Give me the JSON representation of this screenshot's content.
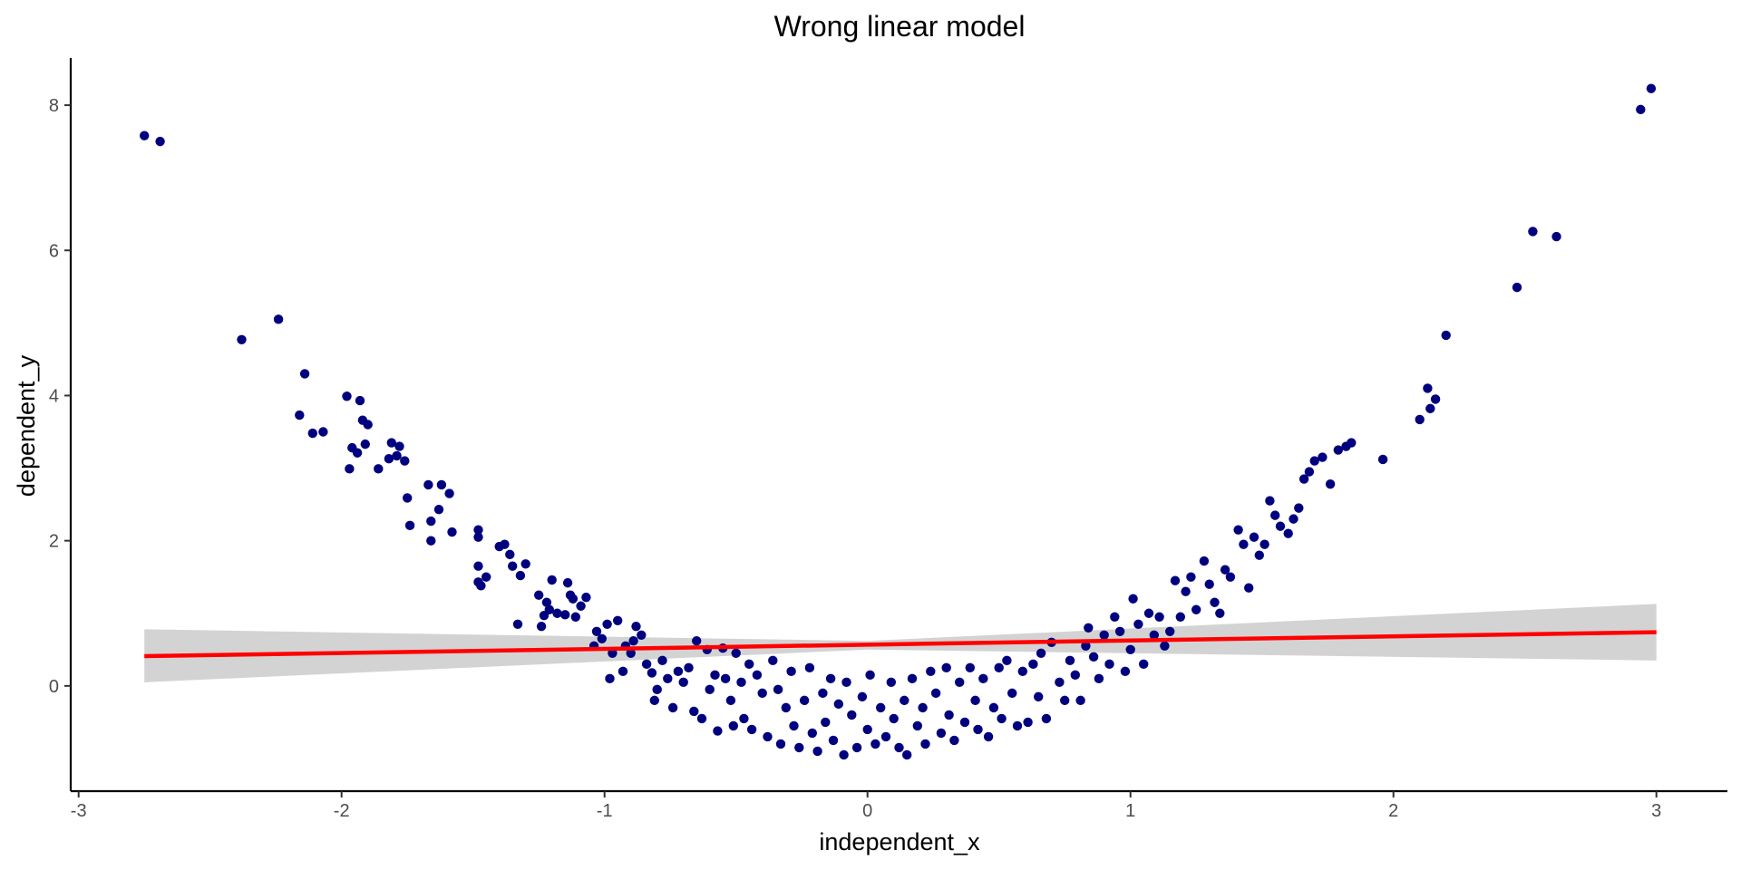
{
  "chart_data": {
    "type": "scatter",
    "title": "Wrong linear model",
    "xlabel": "independent_x",
    "ylabel": "dependent_y",
    "xlim": [
      -3.03,
      3.27
    ],
    "ylim": [
      -1.45,
      8.65
    ],
    "xticks": [
      -3,
      -2,
      -1,
      0,
      1,
      2,
      3
    ],
    "yticks": [
      0,
      2,
      4,
      6,
      8
    ],
    "grid": false,
    "legend": "none",
    "colors": {
      "points": "#00007f",
      "fit_line": "#ff0000",
      "confidence_band": "#d3d3d3",
      "axis": "#000000",
      "tick_label": "#4d4d4d"
    },
    "series": [
      {
        "type": "scatter",
        "points": [
          [
            -2.75,
            7.58
          ],
          [
            -2.69,
            7.5
          ],
          [
            -2.38,
            4.77
          ],
          [
            -2.24,
            5.05
          ],
          [
            -2.16,
            3.73
          ],
          [
            -2.14,
            4.3
          ],
          [
            -2.11,
            3.48
          ],
          [
            -2.07,
            3.5
          ],
          [
            -1.98,
            3.99
          ],
          [
            -1.97,
            2.99
          ],
          [
            -1.96,
            3.28
          ],
          [
            -1.94,
            3.21
          ],
          [
            -1.93,
            3.93
          ],
          [
            -1.92,
            3.66
          ],
          [
            -1.91,
            3.33
          ],
          [
            -1.9,
            3.6
          ],
          [
            -1.86,
            2.99
          ],
          [
            -1.82,
            3.13
          ],
          [
            -1.81,
            3.35
          ],
          [
            -1.79,
            3.17
          ],
          [
            -1.78,
            3.3
          ],
          [
            -1.76,
            3.1
          ],
          [
            -1.75,
            2.59
          ],
          [
            -1.74,
            2.21
          ],
          [
            -1.67,
            2.77
          ],
          [
            -1.66,
            2.0
          ],
          [
            -1.66,
            2.27
          ],
          [
            -1.63,
            2.43
          ],
          [
            -1.62,
            2.77
          ],
          [
            -1.59,
            2.65
          ],
          [
            -1.58,
            2.12
          ],
          [
            -1.48,
            2.15
          ],
          [
            -1.48,
            2.05
          ],
          [
            -1.48,
            1.65
          ],
          [
            -1.48,
            1.43
          ],
          [
            -1.47,
            1.38
          ],
          [
            -1.45,
            1.5
          ],
          [
            -1.4,
            1.92
          ],
          [
            -1.38,
            1.95
          ],
          [
            -1.36,
            1.81
          ],
          [
            -1.35,
            1.65
          ],
          [
            -1.33,
            0.85
          ],
          [
            -1.32,
            1.52
          ],
          [
            -1.3,
            1.68
          ],
          [
            -1.25,
            1.25
          ],
          [
            -1.24,
            0.82
          ],
          [
            -1.23,
            0.97
          ],
          [
            -1.22,
            1.15
          ],
          [
            -1.21,
            1.05
          ],
          [
            -1.2,
            1.46
          ],
          [
            -1.18,
            1.0
          ],
          [
            -1.15,
            0.98
          ],
          [
            -1.14,
            1.42
          ],
          [
            -1.13,
            1.25
          ],
          [
            -1.12,
            1.2
          ],
          [
            -1.11,
            0.95
          ],
          [
            -1.09,
            1.1
          ],
          [
            -1.07,
            1.22
          ],
          [
            -1.04,
            0.55
          ],
          [
            -1.03,
            0.75
          ],
          [
            -1.01,
            0.65
          ],
          [
            -0.99,
            0.85
          ],
          [
            -0.98,
            0.1
          ],
          [
            -0.97,
            0.45
          ],
          [
            -0.95,
            0.9
          ],
          [
            -0.93,
            0.2
          ],
          [
            -0.92,
            0.55
          ],
          [
            -0.9,
            0.45
          ],
          [
            -0.89,
            0.62
          ],
          [
            -0.88,
            0.82
          ],
          [
            -0.86,
            0.7
          ],
          [
            -0.84,
            0.3
          ],
          [
            -0.82,
            0.18
          ],
          [
            -0.81,
            -0.2
          ],
          [
            -0.8,
            -0.05
          ],
          [
            -0.78,
            0.35
          ],
          [
            -0.76,
            0.1
          ],
          [
            -0.74,
            -0.3
          ],
          [
            -0.72,
            0.2
          ],
          [
            -0.7,
            0.05
          ],
          [
            -0.68,
            0.25
          ],
          [
            -0.66,
            -0.35
          ],
          [
            -0.65,
            0.62
          ],
          [
            -0.63,
            -0.45
          ],
          [
            -0.61,
            0.5
          ],
          [
            -0.6,
            -0.05
          ],
          [
            -0.58,
            0.15
          ],
          [
            -0.57,
            -0.62
          ],
          [
            -0.55,
            0.52
          ],
          [
            -0.54,
            0.1
          ],
          [
            -0.52,
            -0.2
          ],
          [
            -0.51,
            -0.55
          ],
          [
            -0.5,
            0.45
          ],
          [
            -0.48,
            0.05
          ],
          [
            -0.47,
            -0.45
          ],
          [
            -0.45,
            0.3
          ],
          [
            -0.44,
            -0.6
          ],
          [
            -0.42,
            0.15
          ],
          [
            -0.4,
            -0.1
          ],
          [
            -0.38,
            -0.7
          ],
          [
            -0.36,
            0.35
          ],
          [
            -0.34,
            -0.05
          ],
          [
            -0.33,
            -0.8
          ],
          [
            -0.31,
            -0.3
          ],
          [
            -0.29,
            0.2
          ],
          [
            -0.28,
            -0.55
          ],
          [
            -0.26,
            -0.85
          ],
          [
            -0.24,
            -0.2
          ],
          [
            -0.22,
            0.25
          ],
          [
            -0.21,
            -0.65
          ],
          [
            -0.19,
            -0.9
          ],
          [
            -0.17,
            -0.1
          ],
          [
            -0.16,
            -0.5
          ],
          [
            -0.14,
            0.1
          ],
          [
            -0.13,
            -0.75
          ],
          [
            -0.11,
            -0.25
          ],
          [
            -0.09,
            -0.95
          ],
          [
            -0.08,
            0.05
          ],
          [
            -0.06,
            -0.4
          ],
          [
            -0.04,
            -0.85
          ],
          [
            -0.02,
            -0.15
          ],
          [
            0.0,
            -0.6
          ],
          [
            0.01,
            0.15
          ],
          [
            0.03,
            -0.8
          ],
          [
            0.05,
            -0.3
          ],
          [
            0.07,
            -0.7
          ],
          [
            0.09,
            0.05
          ],
          [
            0.1,
            -0.45
          ],
          [
            0.12,
            -0.85
          ],
          [
            0.14,
            -0.2
          ],
          [
            0.15,
            -0.95
          ],
          [
            0.17,
            0.1
          ],
          [
            0.19,
            -0.55
          ],
          [
            0.21,
            -0.3
          ],
          [
            0.22,
            -0.8
          ],
          [
            0.24,
            0.2
          ],
          [
            0.26,
            -0.1
          ],
          [
            0.28,
            -0.65
          ],
          [
            0.3,
            0.25
          ],
          [
            0.31,
            -0.4
          ],
          [
            0.33,
            -0.75
          ],
          [
            0.35,
            0.05
          ],
          [
            0.37,
            -0.5
          ],
          [
            0.39,
            0.25
          ],
          [
            0.41,
            -0.2
          ],
          [
            0.42,
            -0.6
          ],
          [
            0.44,
            0.1
          ],
          [
            0.46,
            -0.7
          ],
          [
            0.48,
            -0.3
          ],
          [
            0.5,
            0.25
          ],
          [
            0.51,
            -0.45
          ],
          [
            0.53,
            0.35
          ],
          [
            0.55,
            -0.1
          ],
          [
            0.57,
            -0.55
          ],
          [
            0.59,
            0.2
          ],
          [
            0.61,
            -0.5
          ],
          [
            0.63,
            0.3
          ],
          [
            0.65,
            -0.15
          ],
          [
            0.66,
            0.45
          ],
          [
            0.68,
            -0.45
          ],
          [
            0.7,
            0.6
          ],
          [
            0.73,
            0.05
          ],
          [
            0.75,
            -0.2
          ],
          [
            0.77,
            0.35
          ],
          [
            0.79,
            0.15
          ],
          [
            0.81,
            -0.2
          ],
          [
            0.83,
            0.55
          ],
          [
            0.84,
            0.8
          ],
          [
            0.86,
            0.4
          ],
          [
            0.88,
            0.1
          ],
          [
            0.9,
            0.7
          ],
          [
            0.92,
            0.3
          ],
          [
            0.94,
            0.95
          ],
          [
            0.96,
            0.75
          ],
          [
            0.98,
            0.2
          ],
          [
            1.0,
            0.5
          ],
          [
            1.01,
            1.2
          ],
          [
            1.03,
            0.85
          ],
          [
            1.05,
            0.3
          ],
          [
            1.07,
            1.0
          ],
          [
            1.09,
            0.7
          ],
          [
            1.11,
            0.95
          ],
          [
            1.13,
            0.55
          ],
          [
            1.15,
            0.75
          ],
          [
            1.17,
            1.45
          ],
          [
            1.19,
            0.95
          ],
          [
            1.21,
            1.3
          ],
          [
            1.23,
            1.5
          ],
          [
            1.25,
            1.05
          ],
          [
            1.28,
            1.72
          ],
          [
            1.3,
            1.4
          ],
          [
            1.32,
            1.15
          ],
          [
            1.34,
            1.0
          ],
          [
            1.36,
            1.6
          ],
          [
            1.38,
            1.5
          ],
          [
            1.41,
            2.15
          ],
          [
            1.43,
            1.95
          ],
          [
            1.45,
            1.35
          ],
          [
            1.47,
            2.05
          ],
          [
            1.49,
            1.8
          ],
          [
            1.51,
            1.95
          ],
          [
            1.53,
            2.55
          ],
          [
            1.55,
            2.35
          ],
          [
            1.57,
            2.2
          ],
          [
            1.6,
            2.1
          ],
          [
            1.62,
            2.3
          ],
          [
            1.64,
            2.45
          ],
          [
            1.66,
            2.85
          ],
          [
            1.68,
            2.95
          ],
          [
            1.7,
            3.1
          ],
          [
            1.73,
            3.15
          ],
          [
            1.76,
            2.78
          ],
          [
            1.79,
            3.25
          ],
          [
            1.82,
            3.3
          ],
          [
            1.84,
            3.35
          ],
          [
            1.96,
            3.12
          ],
          [
            2.1,
            3.67
          ],
          [
            2.13,
            4.1
          ],
          [
            2.14,
            3.82
          ],
          [
            2.16,
            3.95
          ],
          [
            2.2,
            4.83
          ],
          [
            2.47,
            5.49
          ],
          [
            2.53,
            6.26
          ],
          [
            2.62,
            6.19
          ],
          [
            2.94,
            7.94
          ],
          [
            2.98,
            8.23
          ]
        ]
      },
      {
        "type": "line",
        "points": [
          [
            -2.75,
            0.41
          ],
          [
            3.0,
            0.74
          ]
        ]
      },
      {
        "type": "area",
        "upper": [
          [
            -2.75,
            0.78
          ],
          [
            0.0,
            0.62
          ],
          [
            3.0,
            1.13
          ]
        ],
        "lower": [
          [
            -2.75,
            0.05
          ],
          [
            0.0,
            0.5
          ],
          [
            3.0,
            0.35
          ]
        ]
      }
    ]
  }
}
